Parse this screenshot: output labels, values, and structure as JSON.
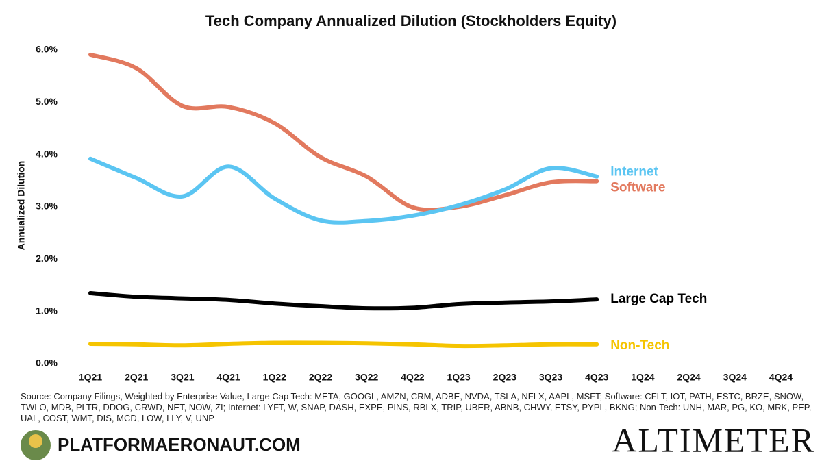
{
  "chart_data": {
    "type": "line",
    "title": "Tech Company Annualized Dilution (Stockholders Equity)",
    "y_label": "Annualized Dilution",
    "categories": [
      "1Q21",
      "2Q21",
      "3Q21",
      "4Q21",
      "1Q22",
      "2Q22",
      "3Q22",
      "4Q22",
      "1Q23",
      "2Q23",
      "3Q23",
      "4Q23",
      "1Q24",
      "2Q24",
      "3Q24",
      "4Q24"
    ],
    "series": [
      {
        "name": "Software",
        "color": "#e2795e",
        "values": [
          5.91,
          5.65,
          4.93,
          4.91,
          4.6,
          3.95,
          3.58,
          2.99,
          3.0,
          3.22,
          3.47,
          3.49,
          null,
          null,
          null,
          null
        ]
      },
      {
        "name": "Internet",
        "color": "#5bc5f2",
        "values": [
          3.92,
          3.55,
          3.2,
          3.77,
          3.16,
          2.74,
          2.73,
          2.83,
          3.03,
          3.33,
          3.74,
          3.58,
          null,
          null,
          null,
          null
        ]
      },
      {
        "name": "Large Cap Tech",
        "color": "#000000",
        "values": [
          1.35,
          1.28,
          1.25,
          1.22,
          1.15,
          1.1,
          1.06,
          1.07,
          1.14,
          1.17,
          1.19,
          1.23,
          null,
          null,
          null,
          null
        ]
      },
      {
        "name": "Non-Tech",
        "color": "#f5c400",
        "values": [
          0.38,
          0.37,
          0.35,
          0.38,
          0.4,
          0.4,
          0.39,
          0.37,
          0.34,
          0.35,
          0.37,
          0.37,
          null,
          null,
          null,
          null
        ]
      }
    ],
    "ylim": [
      0,
      6
    ],
    "yticks": [
      {
        "value": 0,
        "label": "0.0%"
      },
      {
        "value": 1,
        "label": "1.0%"
      },
      {
        "value": 2,
        "label": "2.0%"
      },
      {
        "value": 3,
        "label": "3.0%"
      },
      {
        "value": 4,
        "label": "4.0%"
      },
      {
        "value": 5,
        "label": "5.0%"
      },
      {
        "value": 6,
        "label": "6.0%"
      }
    ],
    "grid": false,
    "source": "Source: Company Filings, Weighted by Enterprise Value, Large Cap Tech: META, GOOGL, AMZN, CRM, ADBE, NVDA, TSLA, NFLX, AAPL, MSFT; Software: CFLT, IOT, PATH, ESTC, BRZE, SNOW, TWLO, MDB, PLTR, DDOG, CRWD, NET, NOW, ZI; Internet: LYFT, W, SNAP, DASH, EXPE, PINS, RBLX, TRIP, UBER, ABNB, CHWY, ETSY, PYPL, BKNG; Non-Tech: UNH, MAR, PG, KO, MRK, PEP, UAL, COST, WMT, DIS, MCD, LOW, LLY, V, UNP",
    "brand": "PLATFORMAERONAUT.COM",
    "logo": "ALTIMETER"
  }
}
